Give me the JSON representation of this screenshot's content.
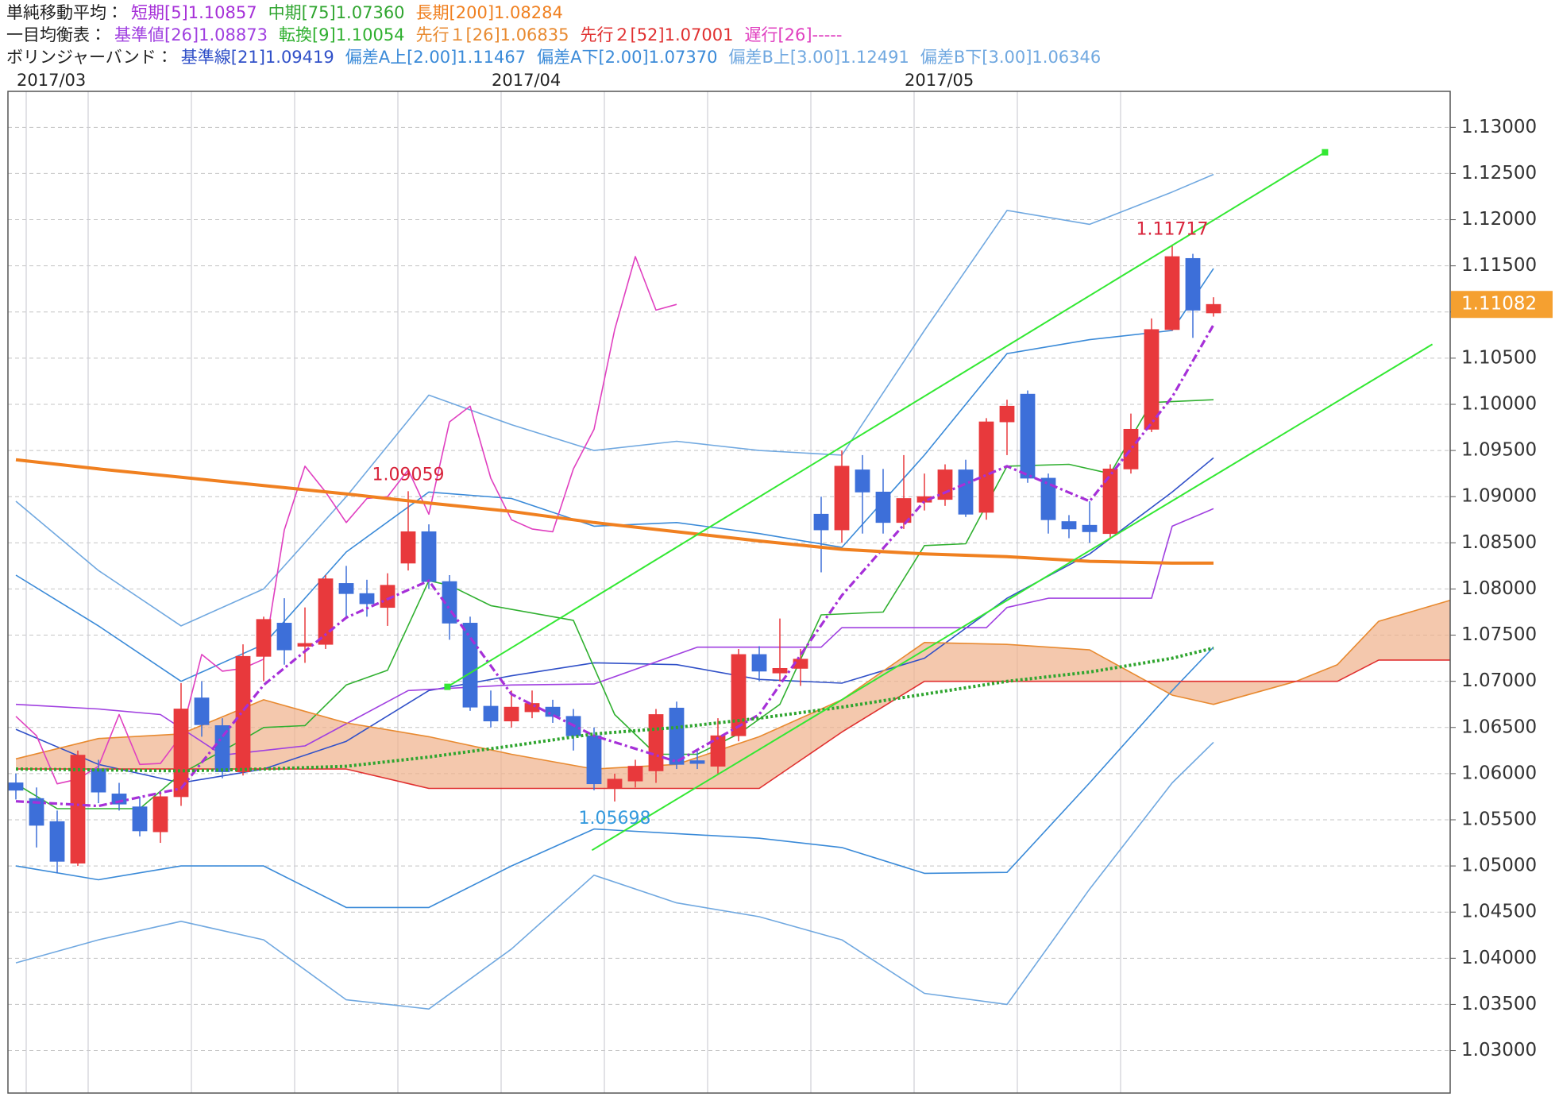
{
  "chart_data": {
    "type": "candlestick",
    "legend": [
      {
        "title": "単純移動平均：",
        "series": [
          {
            "name": "短期[5]1.10857",
            "color": "#a630d8",
            "style": "dashed",
            "x": [
              0,
              4,
              8,
              12,
              16,
              20,
              24,
              28,
              32,
              36,
              40,
              44,
              48,
              52,
              56,
              58
            ],
            "values": [
              1.057,
              1.0565,
              1.0584,
              1.0696,
              1.0769,
              1.0809,
              1.0686,
              1.0641,
              1.0613,
              1.0664,
              1.0793,
              1.0895,
              1.0933,
              1.0895,
              1.1008,
              1.1086
            ]
          },
          {
            "name": "中期[75]1.07360",
            "color": "#2fa52f",
            "style": "dotted",
            "x": [
              0,
              4,
              8,
              12,
              16,
              20,
              24,
              28,
              32,
              36,
              40,
              44,
              48,
              52,
              56,
              58
            ],
            "values": [
              1.0605,
              1.0604,
              1.0603,
              1.0605,
              1.0608,
              1.0618,
              1.063,
              1.0643,
              1.065,
              1.066,
              1.0672,
              1.0686,
              1.07,
              1.071,
              1.0725,
              1.0736
            ]
          },
          {
            "name": "長期[200]1.08284",
            "color": "#f08020",
            "style": "thick",
            "x": [
              0,
              4,
              8,
              12,
              16,
              20,
              24,
              28,
              32,
              36,
              40,
              44,
              48,
              52,
              56,
              58
            ],
            "values": [
              1.094,
              1.093,
              1.0921,
              1.0912,
              1.0903,
              1.0893,
              1.0884,
              1.0872,
              1.0862,
              1.0852,
              1.0843,
              1.0838,
              1.0835,
              1.083,
              1.0828,
              1.0828
            ]
          }
        ]
      },
      {
        "title": "一目均衡表：",
        "series": [
          {
            "name": "基準値[26]1.08873",
            "color": "#a040e0",
            "style": "solid",
            "x": [
              0,
              4,
              7,
              10,
              14,
              19,
              24,
              28,
              33,
              39,
              40,
              47,
              48,
              50,
              55,
              56,
              58
            ],
            "values": [
              1.0675,
              1.067,
              1.0664,
              1.062,
              1.063,
              1.069,
              1.0696,
              1.0697,
              1.0737,
              1.0737,
              1.0758,
              1.0758,
              1.078,
              1.079,
              1.079,
              1.0868,
              1.0887
            ]
          },
          {
            "name": "転換[9]1.10054",
            "color": "#30b030",
            "style": "solid",
            "x": [
              0,
              2,
              6,
              8,
              11,
              12,
              14,
              16,
              18,
              20,
              21,
              23,
              27,
              29,
              31,
              33,
              35,
              37,
              39,
              42,
              44,
              46,
              48,
              51,
              53,
              55,
              58
            ],
            "values": [
              1.0589,
              1.0562,
              1.0562,
              1.06,
              1.0637,
              1.065,
              1.0652,
              1.0696,
              1.0712,
              1.0809,
              1.0804,
              1.0782,
              1.0766,
              1.0664,
              1.0621,
              1.0621,
              1.0643,
              1.0675,
              1.0772,
              1.0775,
              1.0847,
              1.0849,
              1.0933,
              1.0935,
              1.0925,
              1.1002,
              1.1005
            ]
          },
          {
            "name": "先行１[26]1.06835",
            "color": "#e88a30",
            "style": "solid",
            "x": [
              0,
              4,
              8,
              12,
              16,
              20,
              24,
              28,
              32,
              36,
              40,
              44,
              48,
              52,
              56,
              58,
              62,
              64,
              66,
              69.5
            ],
            "values": [
              1.0616,
              1.0638,
              1.0643,
              1.068,
              1.0655,
              1.064,
              1.0621,
              1.0605,
              1.061,
              1.064,
              1.068,
              1.0742,
              1.074,
              1.0734,
              1.0685,
              1.0675,
              1.07,
              1.0718,
              1.0765,
              1.0788
            ]
          },
          {
            "name": "先行２[52]1.07001",
            "color": "#e03030",
            "style": "solid",
            "x": [
              0,
              4,
              8,
              12,
              16,
              20,
              24,
              28,
              32,
              36,
              40,
              44,
              48,
              52,
              56,
              58,
              62,
              64,
              66,
              69.5
            ],
            "values": [
              1.0605,
              1.0605,
              1.0605,
              1.0605,
              1.0605,
              1.0584,
              1.0584,
              1.0584,
              1.0584,
              1.0584,
              1.0645,
              1.07,
              1.07,
              1.07,
              1.07,
              1.07,
              1.07,
              1.07,
              1.0723,
              1.0723
            ]
          },
          {
            "name": "遅行[26]-----",
            "color": "#e040c0",
            "style": "solid",
            "x": [
              0,
              1,
              2,
              3,
              4,
              5,
              6,
              7,
              8,
              9,
              10,
              11,
              12,
              13,
              14,
              15,
              16,
              17,
              18,
              19,
              20,
              21,
              22,
              23,
              24,
              25,
              26,
              27,
              28,
              29,
              30,
              31,
              32
            ],
            "values": [
              1.0662,
              1.0641,
              1.0589,
              1.0594,
              1.0608,
              1.0664,
              1.061,
              1.0611,
              1.0641,
              1.0729,
              1.0711,
              1.0714,
              1.0724,
              1.0864,
              1.0933,
              1.0905,
              1.0872,
              1.0898,
              1.09,
              1.0929,
              1.0881,
              1.0981,
              1.0998,
              1.092,
              1.0875,
              1.0865,
              1.0862,
              1.093,
              1.0973,
              1.1081,
              1.116,
              1.1102,
              1.11082
            ]
          }
        ]
      },
      {
        "title": "ボリンジャーバンド：",
        "series": [
          {
            "name": "基準線[21]1.09419",
            "color": "#3050c8",
            "style": "solid",
            "x": [
              0,
              4,
              8,
              12,
              16,
              20,
              24,
              28,
              32,
              36,
              40,
              44,
              48,
              52,
              56,
              58
            ],
            "values": [
              1.0648,
              1.061,
              1.059,
              1.0605,
              1.0635,
              1.069,
              1.0706,
              1.072,
              1.0718,
              1.0702,
              1.0698,
              1.0725,
              1.079,
              1.0838,
              1.0905,
              1.0942
            ]
          },
          {
            "name": "偏差A上[2.00]1.11467",
            "color": "#3a8ad8",
            "style": "solid",
            "x": [
              0,
              4,
              8,
              12,
              16,
              20,
              24,
              28,
              32,
              36,
              40,
              44,
              48,
              52,
              56,
              58
            ],
            "values": [
              1.0815,
              1.076,
              1.07,
              1.074,
              1.084,
              1.0905,
              1.0898,
              1.0868,
              1.0872,
              1.086,
              1.0845,
              1.0945,
              1.1055,
              1.107,
              1.108,
              1.1147
            ]
          },
          {
            "name": "偏差A下[2.00]1.07370",
            "color": "#3a8ad8",
            "style": "solid",
            "x": [
              0,
              4,
              8,
              12,
              16,
              20,
              24,
              28,
              32,
              36,
              40,
              44,
              48,
              52,
              56,
              58
            ],
            "values": [
              1.05,
              1.0485,
              1.05,
              1.05,
              1.0455,
              1.0455,
              1.05,
              1.054,
              1.0535,
              1.053,
              1.052,
              1.0492,
              1.0493,
              1.059,
              1.069,
              1.0737
            ]
          },
          {
            "name": "偏差B上[3.00]1.12491",
            "color": "#70a8e0",
            "style": "solid",
            "x": [
              0,
              4,
              8,
              12,
              16,
              20,
              24,
              28,
              32,
              36,
              40,
              44,
              48,
              52,
              56,
              58
            ],
            "values": [
              1.0895,
              1.082,
              1.076,
              1.08,
              1.09,
              1.101,
              1.0978,
              1.095,
              1.096,
              1.095,
              1.0945,
              1.108,
              1.121,
              1.1195,
              1.123,
              1.1249
            ]
          },
          {
            "name": "偏差B下[3.00]1.06346",
            "color": "#70a8e0",
            "style": "solid",
            "x": [
              0,
              4,
              8,
              12,
              16,
              20,
              24,
              28,
              32,
              36,
              40,
              44,
              48,
              52,
              56,
              58
            ],
            "values": [
              1.0395,
              1.042,
              1.044,
              1.042,
              1.0355,
              1.0345,
              1.041,
              1.049,
              1.046,
              1.0445,
              1.042,
              1.0362,
              1.035,
              1.0475,
              1.059,
              1.0634
            ]
          }
        ]
      }
    ],
    "cloud_color": "#efb08a",
    "categories": [
      null,
      "2017/03",
      null,
      null,
      null,
      null,
      null,
      null,
      null,
      null,
      null,
      null,
      null,
      null,
      null,
      null,
      null,
      null,
      null,
      null,
      null,
      null,
      null,
      null,
      "2017/04",
      null,
      null,
      null,
      null,
      null,
      null,
      null,
      null,
      null,
      null,
      null,
      null,
      null,
      null,
      null,
      null,
      null,
      null,
      null,
      "2017/05",
      null,
      null,
      null,
      null,
      null,
      null,
      null,
      null,
      null,
      null,
      null,
      null,
      null,
      null
    ],
    "open": [
      1.059,
      1.0573,
      1.0548,
      1.0503,
      1.0605,
      1.0578,
      1.0564,
      1.0537,
      1.0575,
      1.0682,
      1.0652,
      1.0602,
      1.0727,
      1.0763,
      1.0738,
      1.074,
      1.0806,
      1.0795,
      1.078,
      1.0828,
      1.0862,
      1.0808,
      1.0763,
      1.0673,
      1.0657,
      1.0667,
      1.0672,
      1.0662,
      1.0641,
      1.0584,
      1.0592,
      1.0603,
      1.0671,
      1.0614,
      1.0608,
      1.0641,
      1.0729,
      1.0709,
      1.0714,
      1.0881,
      1.0864,
      1.0929,
      1.0905,
      1.0872,
      1.0894,
      1.0897,
      1.0929,
      1.0883,
      1.0981,
      1.1011,
      1.092,
      1.0873,
      1.0869,
      1.086,
      1.093,
      1.0973,
      1.1081,
      1.1158,
      1.1099
    ],
    "high": [
      1.06,
      1.0585,
      1.056,
      1.0625,
      1.0615,
      1.059,
      1.0575,
      1.058,
      1.0698,
      1.07,
      1.066,
      1.074,
      1.077,
      1.079,
      1.078,
      1.0815,
      1.0825,
      1.081,
      1.0817,
      1.09059,
      1.087,
      1.0815,
      1.077,
      1.069,
      1.069,
      1.069,
      1.068,
      1.067,
      1.065,
      1.06,
      1.0615,
      1.067,
      1.0678,
      1.0625,
      1.066,
      1.0735,
      1.0738,
      1.0768,
      1.0735,
      1.09,
      1.095,
      1.0945,
      1.093,
      1.0945,
      1.0925,
      1.0935,
      1.094,
      1.0985,
      1.1005,
      1.1015,
      1.0925,
      1.088,
      1.0895,
      1.0935,
      1.099,
      1.1093,
      1.11717,
      1.1163,
      1.1116
    ],
    "low": [
      1.0572,
      1.052,
      1.0492,
      1.05,
      1.0568,
      1.056,
      1.0532,
      1.0525,
      1.0565,
      1.064,
      1.0595,
      1.0598,
      1.07,
      1.0718,
      1.072,
      1.0735,
      1.077,
      1.077,
      1.076,
      1.082,
      1.08,
      1.0745,
      1.0668,
      1.065,
      1.065,
      1.066,
      1.0655,
      1.0625,
      1.0582,
      1.05698,
      1.0585,
      1.059,
      1.0605,
      1.0605,
      1.06,
      1.0635,
      1.07,
      1.07,
      1.0695,
      1.0818,
      1.085,
      1.086,
      1.086,
      1.0865,
      1.0885,
      1.089,
      1.0878,
      1.0875,
      1.0945,
      1.0915,
      1.086,
      1.0855,
      1.085,
      1.0855,
      1.0925,
      1.097,
      1.108,
      1.1072,
      1.1095
    ],
    "close": [
      1.0582,
      1.0544,
      1.0505,
      1.062,
      1.058,
      1.0567,
      1.0538,
      1.0575,
      1.067,
      1.0653,
      1.0602,
      1.0727,
      1.0767,
      1.0734,
      1.0741,
      1.0811,
      1.0795,
      1.0784,
      1.0804,
      1.0862,
      1.0808,
      1.0763,
      1.0672,
      1.0657,
      1.0672,
      1.0676,
      1.0662,
      1.0641,
      1.0589,
      1.0594,
      1.0608,
      1.0664,
      1.061,
      1.0611,
      1.0641,
      1.0729,
      1.0711,
      1.0714,
      1.0724,
      1.0864,
      1.0933,
      1.0905,
      1.0872,
      1.0898,
      1.09,
      1.0929,
      1.0881,
      1.0981,
      1.0998,
      1.092,
      1.0875,
      1.0865,
      1.0862,
      1.093,
      1.0973,
      1.1081,
      1.116,
      1.1102,
      1.11082
    ],
    "up_color": "#e8393c",
    "down_color": "#3d6fd9",
    "trendlines": [
      {
        "color": "#33e833",
        "x": [
          20.9,
          63.4
        ],
        "values": [
          1.0694,
          1.1273
        ]
      },
      {
        "color": "#33e833",
        "x": [
          27.9,
          68.6
        ],
        "values": [
          1.0517,
          1.1065
        ]
      }
    ],
    "ylim": [
      1.0254,
      1.1339
    ],
    "yticks": [
      {
        "value": 1.03,
        "label": "1.03000"
      },
      {
        "value": 1.035,
        "label": "1.03500"
      },
      {
        "value": 1.04,
        "label": "1.04000"
      },
      {
        "value": 1.045,
        "label": "1.04500"
      },
      {
        "value": 1.05,
        "label": "1.05000"
      },
      {
        "value": 1.055,
        "label": "1.05500"
      },
      {
        "value": 1.06,
        "label": "1.06000"
      },
      {
        "value": 1.065,
        "label": "1.06500"
      },
      {
        "value": 1.07,
        "label": "1.07000"
      },
      {
        "value": 1.075,
        "label": "1.07500"
      },
      {
        "value": 1.08,
        "label": "1.08000"
      },
      {
        "value": 1.085,
        "label": "1.08500"
      },
      {
        "value": 1.09,
        "label": "1.09000"
      },
      {
        "value": 1.095,
        "label": "1.09500"
      },
      {
        "value": 1.1,
        "label": "1.10000"
      },
      {
        "value": 1.105,
        "label": "1.10500"
      },
      {
        "value": 1.11,
        "label": "1.11000"
      },
      {
        "value": 1.115,
        "label": "1.11500"
      },
      {
        "value": 1.12,
        "label": "1.12000"
      },
      {
        "value": 1.125,
        "label": "1.12500"
      },
      {
        "value": 1.13,
        "label": "1.13000"
      }
    ],
    "grid": true
  }
}
